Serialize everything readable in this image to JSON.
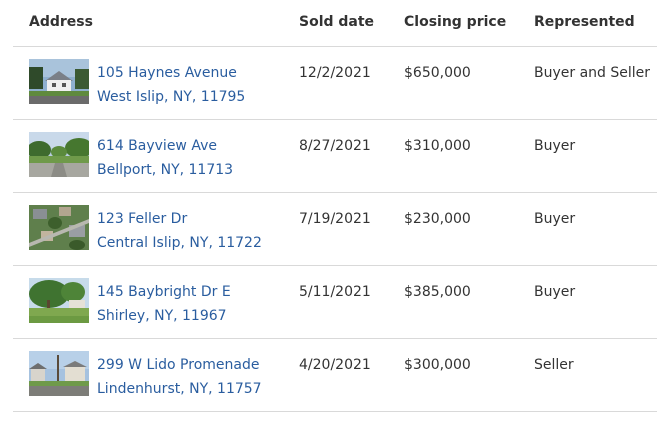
{
  "headers": {
    "address": "Address",
    "sold_date": "Sold date",
    "closing_price": "Closing price",
    "represented": "Represented"
  },
  "rows": [
    {
      "street": "105 Haynes Avenue",
      "city": "West Islip, NY, 11795",
      "sold_date": "12/2/2021",
      "price": "$650,000",
      "represented": "Buyer and Seller",
      "photo": "house-street-photo"
    },
    {
      "street": "614 Bayview Ave",
      "city": "Bellport, NY, 11713",
      "sold_date": "8/27/2021",
      "price": "$310,000",
      "represented": "Buyer",
      "photo": "street-trees-photo"
    },
    {
      "street": "123 Feller Dr",
      "city": "Central Islip, NY, 11722",
      "sold_date": "7/19/2021",
      "price": "$230,000",
      "represented": "Buyer",
      "photo": "aerial-view-photo"
    },
    {
      "street": "145 Baybright Dr E",
      "city": "Shirley, NY, 11967",
      "sold_date": "5/11/2021",
      "price": "$385,000",
      "represented": "Buyer",
      "photo": "yard-tree-photo"
    },
    {
      "street": "299 W Lido Promenade",
      "city": "Lindenhurst, NY, 11757",
      "sold_date": "4/20/2021",
      "price": "$300,000",
      "represented": "Seller",
      "photo": "street-houses-photo"
    }
  ],
  "colors": {
    "link": "#2a5d9f",
    "text": "#333333",
    "divider": "#d9d9d9"
  }
}
